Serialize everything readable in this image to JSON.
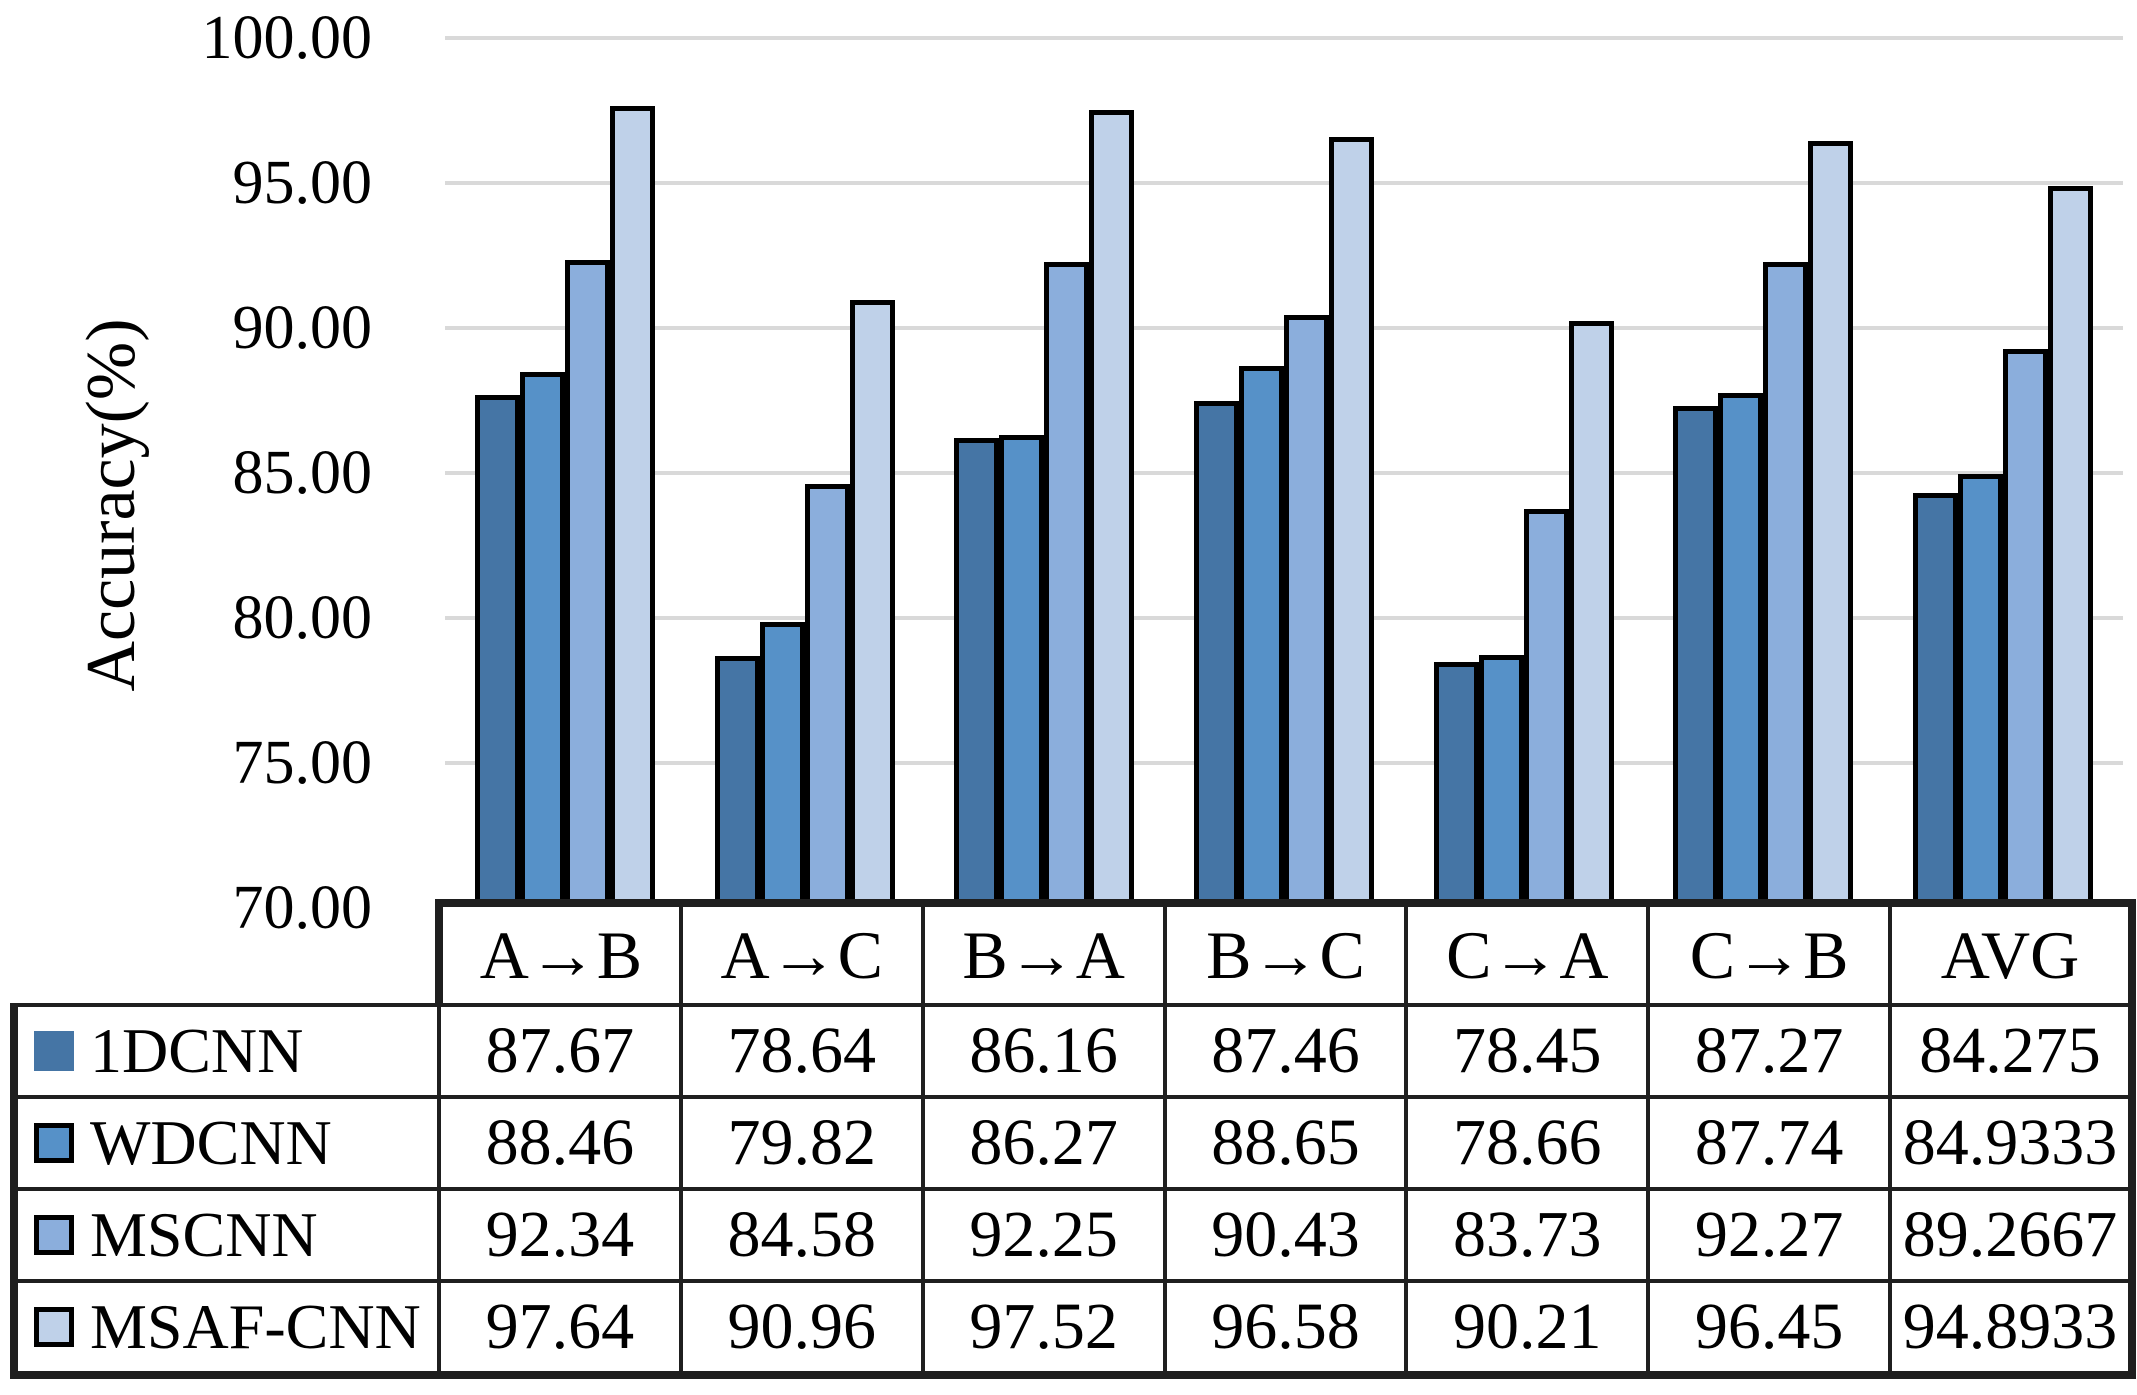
{
  "chart_data": {
    "type": "bar",
    "title": "",
    "xlabel": "",
    "ylabel": "Accuracy(%)",
    "ylim": [
      70,
      100
    ],
    "ytick_step": 5,
    "ytick_labels": [
      "100.00",
      "95.00",
      "90.00",
      "85.00",
      "80.00",
      "75.00",
      "70.00"
    ],
    "grid": true,
    "legend_position": "table-left",
    "categories": [
      "A→B",
      "A→C",
      "B→A",
      "B→C",
      "C→A",
      "C→B",
      "AVG"
    ],
    "series": [
      {
        "name": "1DCNN",
        "color": "#4575A5",
        "values": [
          87.67,
          78.64,
          86.16,
          87.46,
          78.45,
          87.27,
          84.275
        ]
      },
      {
        "name": "WDCNN",
        "color": "#5691C8",
        "values": [
          88.46,
          79.82,
          86.27,
          88.65,
          78.66,
          87.74,
          84.9333
        ]
      },
      {
        "name": "MSCNN",
        "color": "#8BAEDC",
        "values": [
          92.34,
          84.58,
          92.25,
          90.43,
          83.73,
          92.27,
          89.2667
        ]
      },
      {
        "name": "MSAF-CNN",
        "color": "#BFD1E9",
        "values": [
          97.64,
          90.96,
          97.52,
          96.58,
          90.21,
          96.45,
          94.8933
        ]
      }
    ],
    "colors": {
      "background": "#FFFFFF",
      "gridline": "#D9D9D9",
      "bar_outline": "#000000",
      "table_border": "#1F1F1F",
      "text": "#000000"
    }
  }
}
